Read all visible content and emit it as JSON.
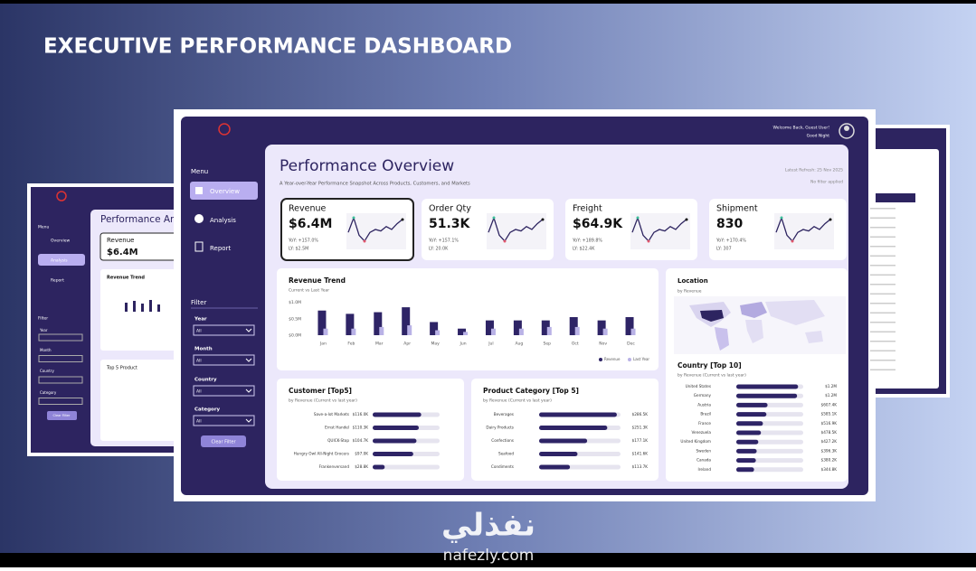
{
  "title": "EXECUTIVE PERFORMANCE DASHBOARD",
  "dashboard": {
    "header": {
      "welcome": "Welcome Back, Guest User!",
      "greeting": "Good Night"
    },
    "menu": {
      "label": "Menu",
      "items": [
        "Overview",
        "Analysis",
        "Report"
      ]
    },
    "filter": {
      "label": "Filter",
      "fields": [
        {
          "label": "Year",
          "value": "All"
        },
        {
          "label": "Month",
          "value": "All"
        },
        {
          "label": "Country",
          "value": "All"
        },
        {
          "label": "Category",
          "value": "All"
        }
      ],
      "button": "Clear Filter"
    },
    "page_title": "Performance Overview",
    "subtitle": "A Year-over-Year Performance Snapshot Across Products, Customers, and Markets",
    "refresh": "Latest Refresh: 25 Nov 2025",
    "filter_state": "No filter applied",
    "kpis": [
      {
        "label": "Revenue",
        "value": "$6.4M",
        "yoy": "YoY: +157.0%",
        "ly": "LY: $2.5M"
      },
      {
        "label": "Order Qty",
        "value": "51.3K",
        "yoy": "YoY: +157.1%",
        "ly": "LY: 20.0K"
      },
      {
        "label": "Freight",
        "value": "$64.9K",
        "yoy": "YoY: +189.8%",
        "ly": "LY: $22.4K"
      },
      {
        "label": "Shipment",
        "value": "830",
        "yoy": "YoY: +170.4%",
        "ly": "LY: 307"
      }
    ],
    "location": {
      "title": "Location",
      "subtitle": "by Revenue"
    },
    "back_left": {
      "title": "Performance Analysis",
      "chart": "Revenue Trend",
      "table": "Top 5 Product"
    }
  },
  "chart_data": [
    {
      "type": "bar",
      "title": "Revenue Trend",
      "subtitle": "Current vs Last Year",
      "categories": [
        "Jan",
        "Feb",
        "Mar",
        "Apr",
        "May",
        "Jun",
        "Jul",
        "Aug",
        "Sep",
        "Oct",
        "Nov",
        "Dec"
      ],
      "series": [
        {
          "name": "Revenue",
          "color": "#2e2466",
          "values": [
            0.75,
            0.65,
            0.7,
            0.85,
            0.4,
            0.2,
            0.45,
            0.45,
            0.45,
            0.55,
            0.45,
            0.55
          ]
        },
        {
          "name": "Last Year",
          "color": "#b9b2e6",
          "values": [
            0.2,
            0.2,
            0.25,
            0.3,
            0.15,
            0.1,
            0.2,
            0.2,
            0.25,
            0.25,
            0.2,
            0.2
          ]
        }
      ],
      "ylim": [
        0,
        1.1
      ],
      "yticks": [
        {
          "value": 0,
          "label": "$0.0M"
        },
        {
          "value": 0.5,
          "label": "$0.5M"
        },
        {
          "value": 1,
          "label": "$1.0M"
        }
      ]
    },
    {
      "type": "hbar",
      "title": "Customer [Top5]",
      "subtitle": "by Revenue (Current vs last year)",
      "categories": [
        "Save-a-lot Markets",
        "Ernst Handel",
        "QUICK-Stop",
        "Hungry Owl All-Night Grocers",
        "Frankenversand"
      ],
      "values": [
        116.0,
        110.3,
        104.7,
        97.0,
        28.8
      ],
      "value_labels": [
        "$116.0K",
        "$110.3K",
        "$104.7K",
        "$97.0K",
        "$28.8K"
      ],
      "color": "#2e2466",
      "xlim": [
        0,
        160
      ]
    },
    {
      "type": "hbar",
      "title": "Product Category [Top 5]",
      "subtitle": "by Revenue (Current vs last year)",
      "categories": [
        "Beverages",
        "Dairy Products",
        "Confections",
        "Seafood",
        "Condiments"
      ],
      "values": [
        286.5,
        251.3,
        177.1,
        141.6,
        113.7
      ],
      "value_labels": [
        "$286.5K",
        "$251.3K",
        "$177.1K",
        "$141.6K",
        "$113.7K"
      ],
      "color": "#2e2466",
      "xlim": [
        0,
        300
      ]
    },
    {
      "type": "hbar",
      "title": "Country [Top 10]",
      "subtitle": "by Revenue (Current vs last year)",
      "categories": [
        "United States",
        "Germany",
        "Austria",
        "Brazil",
        "France",
        "Venezuela",
        "United Kingdom",
        "Sweden",
        "Canada",
        "Ireland"
      ],
      "values": [
        1200,
        1180,
        607.4,
        585.1,
        516.9,
        478.5,
        427.2,
        396.3,
        380.2,
        344.8
      ],
      "value_labels": [
        "$1.2M",
        "$1.2M",
        "$607.4K",
        "$585.1K",
        "$516.9K",
        "$478.5K",
        "$427.2K",
        "$396.3K",
        "$380.2K",
        "$344.8K"
      ],
      "color": "#2e2466",
      "xlim": [
        0,
        1300
      ]
    }
  ]
}
